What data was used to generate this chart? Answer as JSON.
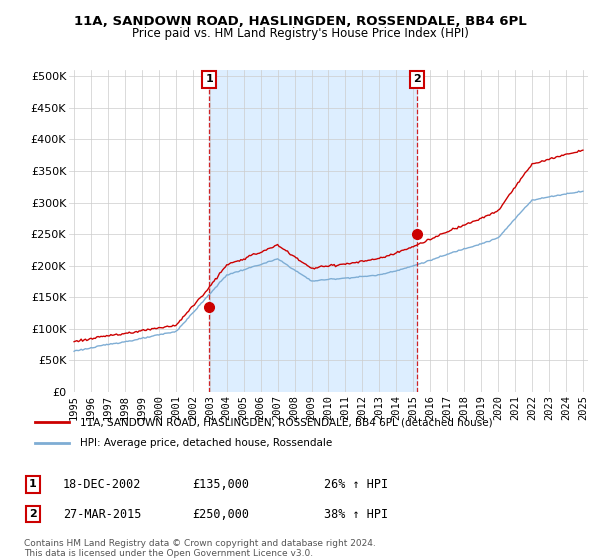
{
  "title": "11A, SANDOWN ROAD, HASLINGDEN, ROSSENDALE, BB4 6PL",
  "subtitle": "Price paid vs. HM Land Registry's House Price Index (HPI)",
  "legend_line1": "11A, SANDOWN ROAD, HASLINGDEN, ROSSENDALE, BB4 6PL (detached house)",
  "legend_line2": "HPI: Average price, detached house, Rossendale",
  "marker1_date": "18-DEC-2002",
  "marker1_price": 135000,
  "marker1_label": "26% ↑ HPI",
  "marker2_date": "27-MAR-2015",
  "marker2_price": 250000,
  "marker2_label": "38% ↑ HPI",
  "footnote1": "Contains HM Land Registry data © Crown copyright and database right 2024.",
  "footnote2": "This data is licensed under the Open Government Licence v3.0.",
  "hpi_color": "#7eadd4",
  "price_color": "#cc0000",
  "marker_color": "#cc0000",
  "shade_color": "#ddeeff",
  "yticks": [
    0,
    50000,
    100000,
    150000,
    200000,
    250000,
    300000,
    350000,
    400000,
    450000,
    500000
  ]
}
